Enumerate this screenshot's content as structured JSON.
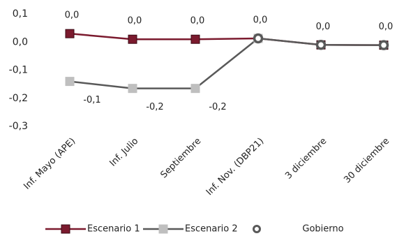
{
  "chart_data": {
    "type": "line",
    "categories": [
      "Inf. Mayo (APE)",
      "Inf. Julio",
      "Septiembre",
      "Inf. Nov. (DBP21)",
      "3 diciembre",
      "30 diciembre"
    ],
    "series": [
      {
        "name": "Escenario 1",
        "color": "#7b1a2e",
        "marker_color": "#7b1a2e",
        "marker": "square",
        "values": [
          0.03,
          0.01,
          0.01,
          0.013,
          -0.01,
          -0.011
        ],
        "value_labels": [
          "0,0",
          "0,0",
          "0,0",
          "0,0",
          "0,0",
          "0,0"
        ]
      },
      {
        "name": "Escenario 2",
        "color": "#595959",
        "marker_color": "#bfbfbf",
        "marker": "square",
        "values": [
          -0.14,
          -0.165,
          -0.165,
          0.013,
          null,
          null
        ],
        "value_labels": [
          "-0,1",
          "-0,2",
          "-0,2",
          null,
          null,
          null
        ]
      },
      {
        "name": "Gobierno",
        "color": "#595959",
        "marker_color": "#ffffff",
        "marker": "circle",
        "values": [
          null,
          null,
          null,
          0.013,
          -0.01,
          -0.011
        ]
      }
    ],
    "ylim": [
      -0.3,
      0.1
    ],
    "yticks": [
      {
        "value": 0.1,
        "label": "0,1"
      },
      {
        "value": 0,
        "label": "0,0"
      },
      {
        "value": -0.1,
        "label": "-0,1"
      },
      {
        "value": -0.2,
        "label": "-0,2"
      },
      {
        "value": -0.3,
        "label": "-0,3"
      }
    ],
    "legend": "bottom"
  }
}
